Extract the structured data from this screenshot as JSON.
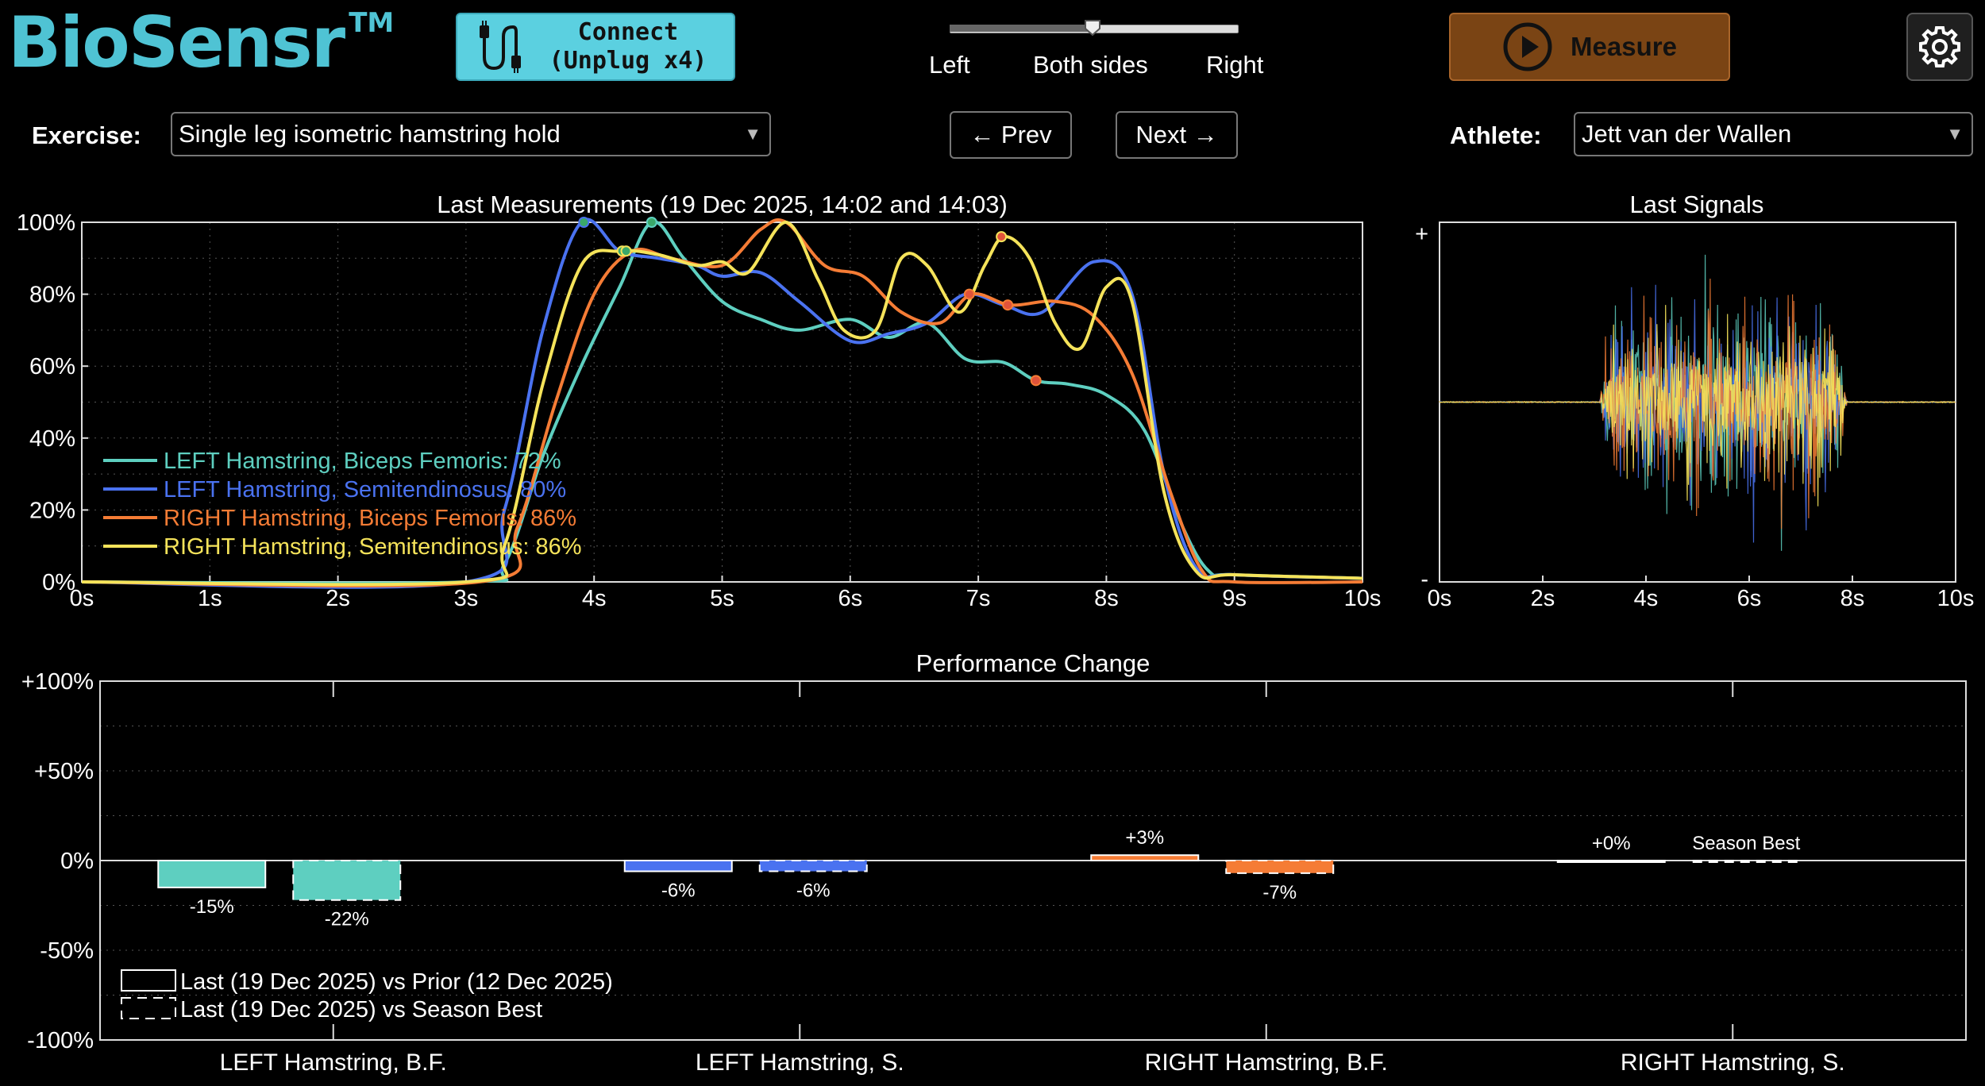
{
  "app": {
    "name": "BioSensr",
    "trademark": "TM"
  },
  "toolbar": {
    "connect_label": "Connect\n(Unplug x4)",
    "measure_label": "Measure",
    "side_selector": {
      "options": [
        "Left",
        "Both sides",
        "Right"
      ],
      "selected": "Both sides"
    }
  },
  "exercise": {
    "label": "Exercise:",
    "value": "Single leg isometric hamstring hold"
  },
  "navigation": {
    "prev_label": "← Prev",
    "next_label": "Next →"
  },
  "athlete": {
    "label": "Athlete:",
    "value": "Jett van der Wallen"
  },
  "colors": {
    "teal": "#5ecfc0",
    "blue": "#4a72f0",
    "orange": "#f57c35",
    "yellow": "#f5e35a",
    "brand": "#4fc3d4",
    "measure": "#7a4414"
  },
  "chart_data": [
    {
      "type": "line",
      "title": "Last Measurements (19 Dec 2025, 14:02 and 14:03)",
      "x_ticks": [
        "0s",
        "1s",
        "2s",
        "3s",
        "4s",
        "5s",
        "6s",
        "7s",
        "8s",
        "9s",
        "10s"
      ],
      "y_ticks": [
        "0%",
        "20%",
        "40%",
        "60%",
        "80%",
        "100%"
      ],
      "xlim": [
        0,
        10
      ],
      "ylim": [
        0,
        100
      ],
      "series": [
        {
          "name": "LEFT Hamstring, Biceps Femoris: 72%",
          "color": "#5ecfc0",
          "x": [
            0,
            3.0,
            3.3,
            3.6,
            3.9,
            4.2,
            4.45,
            4.7,
            5.0,
            5.3,
            5.6,
            6.0,
            6.3,
            6.6,
            6.9,
            7.2,
            7.45,
            7.7,
            8.0,
            8.3,
            8.6,
            8.8,
            9.0,
            10
          ],
          "y": [
            0,
            0,
            5,
            35,
            60,
            82,
            100,
            90,
            78,
            73,
            70,
            73,
            68,
            72,
            62,
            61,
            56,
            55,
            52,
            42,
            15,
            3,
            2,
            1
          ],
          "markers": [
            [
              4.45,
              100
            ]
          ]
        },
        {
          "name": "LEFT Hamstring, Semitendinosus: 80%",
          "color": "#4a72f0",
          "x": [
            0,
            3.0,
            3.3,
            3.6,
            3.9,
            4.2,
            4.5,
            4.8,
            5.0,
            5.3,
            5.6,
            6.0,
            6.3,
            6.6,
            6.9,
            7.2,
            7.5,
            7.9,
            8.2,
            8.45,
            8.7,
            9.0,
            10
          ],
          "y": [
            0,
            0,
            20,
            70,
            100,
            92,
            90,
            88,
            85,
            86,
            78,
            67,
            69,
            72,
            80,
            77,
            75,
            89,
            80,
            30,
            4,
            2,
            1
          ],
          "markers": [
            [
              3.92,
              100
            ]
          ]
        },
        {
          "name": "RIGHT Hamstring, Biceps Femoris: 86%",
          "color": "#f57c35",
          "x": [
            0,
            3.1,
            3.4,
            3.7,
            4.0,
            4.3,
            4.6,
            5.0,
            5.3,
            5.5,
            5.8,
            6.1,
            6.4,
            6.7,
            6.95,
            7.25,
            7.6,
            7.9,
            8.2,
            8.5,
            8.75,
            9.0,
            10
          ],
          "y": [
            0,
            0,
            15,
            50,
            80,
            92,
            90,
            88,
            98,
            100,
            88,
            85,
            75,
            72,
            80,
            77,
            78,
            74,
            58,
            25,
            3,
            0,
            0
          ],
          "markers": [
            [
              6.93,
              80
            ],
            [
              7.45,
              56
            ],
            [
              7.23,
              77
            ]
          ]
        },
        {
          "name": "RIGHT Hamstring, Semitendinosus: 86%",
          "color": "#f5e35a",
          "x": [
            0,
            3.0,
            3.3,
            3.6,
            3.9,
            4.2,
            4.5,
            4.8,
            5.0,
            5.2,
            5.5,
            5.75,
            5.95,
            6.2,
            6.4,
            6.6,
            6.85,
            7.05,
            7.2,
            7.4,
            7.6,
            7.8,
            8.0,
            8.2,
            8.45,
            8.7,
            9.0,
            10
          ],
          "y": [
            0,
            0,
            10,
            55,
            88,
            92,
            91,
            88,
            89,
            86,
            100,
            84,
            70,
            70,
            90,
            88,
            75,
            88,
            96,
            90,
            72,
            65,
            82,
            78,
            25,
            3,
            2,
            1
          ],
          "markers": [
            [
              4.22,
              92
            ],
            [
              4.25,
              92
            ],
            [
              7.18,
              96
            ]
          ]
        }
      ]
    },
    {
      "type": "line",
      "title": "Last Signals",
      "x_ticks": [
        "0s",
        "2s",
        "4s",
        "6s",
        "8s",
        "10s"
      ],
      "y_ticks": [
        "+",
        "-"
      ],
      "xlim": [
        0,
        10
      ],
      "burst_range_s": [
        3.1,
        7.9
      ],
      "series_colors": [
        "#5ecfc0",
        "#4a72f0",
        "#f57c35",
        "#f5e35a"
      ]
    },
    {
      "type": "bar",
      "title": "Performance Change",
      "categories": [
        "LEFT Hamstring, B.F.",
        "LEFT Hamstring, S.",
        "RIGHT Hamstring, B.F.",
        "RIGHT Hamstring, S."
      ],
      "y_ticks": [
        "+100%",
        "+50%",
        "0%",
        "-50%",
        "-100%"
      ],
      "ylim": [
        -100,
        100
      ],
      "series": [
        {
          "name": "Last (19 Dec 2025) vs Prior (12 Dec 2025)",
          "style": "solid",
          "values": [
            -15,
            -6,
            3,
            0
          ],
          "labels": [
            "-15%",
            "-6%",
            "+3%",
            "+0%"
          ]
        },
        {
          "name": "Last (19 Dec 2025) vs Season Best",
          "style": "dashed",
          "values": [
            -22,
            -6,
            -7,
            0
          ],
          "labels": [
            "-22%",
            "-6%",
            "-7%",
            "Season Best"
          ]
        }
      ],
      "bar_colors": [
        "#5ecfc0",
        "#4a72f0",
        "#f57c35",
        "#ffffff"
      ]
    }
  ]
}
